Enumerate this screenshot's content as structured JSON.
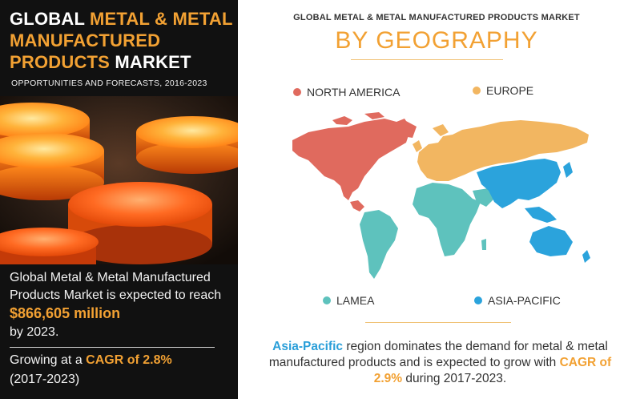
{
  "left": {
    "title_prefix": "GLOBAL ",
    "title_accent": "METAL & METAL MANUFACTURED PRODUCTS",
    "title_suffix": " MARKET",
    "subtitle": "OPPORTUNITIES AND FORECASTS, 2016-2023",
    "market_text_1": "Global Metal & Metal Manufactured Products  Market is expected to reach ",
    "market_value": "$866,605 million",
    "market_text_2": "by 2023.",
    "growth_prefix": "Growing at a ",
    "growth_cagr": "CAGR of 2.8%",
    "growth_period": "(2017-2023)"
  },
  "right": {
    "title": "GLOBAL METAL & METAL MANUFACTURED PRODUCTS MARKET",
    "heading": "BY GEOGRAPHY",
    "legend": [
      {
        "label": "NORTH AMERICA",
        "color": "#e06a5e"
      },
      {
        "label": "EUROPE",
        "color": "#f2b661"
      },
      {
        "label": "LAMEA",
        "color": "#5ec2bd"
      },
      {
        "label": "ASIA-PACIFIC",
        "color": "#2ba3dc"
      }
    ],
    "summary_region": "Asia-Pacific",
    "summary_text_1": " region dominates the demand for metal & metal manufactured products and is expected to grow with ",
    "summary_cagr": "CAGR of 2.9%",
    "summary_text_2": " during 2017-2023."
  },
  "colors": {
    "accent_orange": "#f2a133",
    "north_america": "#e06a5e",
    "europe": "#f2b661",
    "lamea": "#5ec2bd",
    "asia_pacific": "#2ba3dc"
  }
}
